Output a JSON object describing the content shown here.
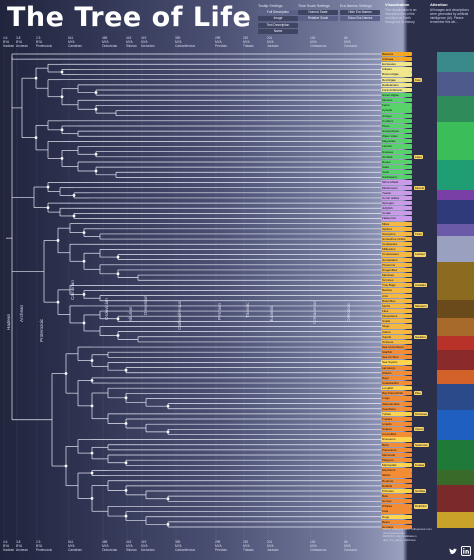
{
  "title": "The Tree of Life",
  "settings": {
    "tooltip": {
      "head": "Tooltip Settings",
      "buttons": [
        "Full Description",
        "Image",
        "Text Description",
        "Name"
      ]
    },
    "timescale": {
      "head": "Time Scale Settings",
      "buttons": [
        "Normal Scale",
        "Relative Scale"
      ]
    },
    "eranames": {
      "head": "Era Names Settings",
      "buttons": [
        "Hide Era Names",
        "Show Era Names"
      ]
    }
  },
  "visualization": {
    "heading": "Visualization",
    "text": "The visualization is an interactive tree of the evolution on Earth throughout its history."
  },
  "attention": {
    "heading": "Attention",
    "text": "All images and descriptions were generated by artificial intelligence (AI). Please remember this wh..."
  },
  "time_ticks": [
    [
      "4.6",
      "BYA",
      "Hadean"
    ],
    [
      "3.8",
      "BYA",
      "Archean"
    ],
    [
      "2.5",
      "BYA",
      "Proterozoic"
    ],
    [
      "541",
      "MYA",
      "Cambrian"
    ],
    [
      "485",
      "MYA",
      "Ordovician"
    ],
    [
      "443",
      "MYA",
      "Silurian"
    ],
    [
      "419",
      "MYA",
      "Devonian"
    ],
    [
      "359",
      "MYA",
      "Carboniferous"
    ],
    [
      "299",
      "MYA",
      "Permian"
    ],
    [
      "252",
      "MYA",
      "Triassic"
    ],
    [
      "201",
      "MYA",
      "Jurassic"
    ],
    [
      "145",
      "MYA",
      "Cretaceous"
    ],
    [
      "66",
      "MYA",
      "Cenozoic"
    ]
  ],
  "eras": [
    "Hadean",
    "Archean",
    "Proterozoic",
    "Cambrian",
    "Ordovician",
    "Silurian",
    "Devonian",
    "Carboniferous",
    "Permian",
    "Triassic",
    "Jurassic",
    "Cretaceous",
    "Cenozoic"
  ],
  "species": [
    "Bacteria",
    "Archaea",
    "Excavates",
    "Ciliates",
    "Brown Algae",
    "Red Algae",
    "Radiolarians",
    "Foraminiferans",
    "Green Algae",
    "Mosses",
    "Ferns",
    "Cycads",
    "Ginkgo",
    "Conifers",
    "Pines",
    "Gnetophytes",
    "Water Lilies",
    "Magnolias",
    "Laurels",
    "Grasses",
    "Orchids",
    "Roses",
    "Oaks",
    "Cacti",
    "Sunflowers",
    "Slime Molds",
    "Mushrooms",
    "Yeasts",
    "Comb Jellies",
    "Sponges",
    "Jellyfish",
    "Corals",
    "Flatworms",
    "Mites",
    "Spiders",
    "Scorpions",
    "Horseshoe Crabs",
    "Centipedes",
    "Millipedes",
    "Crustaceans",
    "Nematodes",
    "Pinworms",
    "Dragonflies",
    "Mantises",
    "Termites",
    "True Bugs",
    "Beetles",
    "Ants",
    "Butterflies",
    "Moths",
    "Flies",
    "Mosquitoes",
    "Snails",
    "Slugs",
    "Clams",
    "Squids",
    "Octopus",
    "Sea Cucumbers",
    "Starfish",
    "Sea Urchins",
    "Sea Squirts",
    "Lampreys",
    "Sharks",
    "Rays",
    "Coelacanths",
    "Lungfish",
    "Ray-finned Fish",
    "Frogs",
    "Salamanders",
    "Caecilians",
    "Turtles",
    "Tuatara",
    "Lizards",
    "Snakes",
    "Crocodiles",
    "Dinosaurs",
    "Birds",
    "Pterosaurs",
    "Mammals",
    "Platypus",
    "Marsupials",
    "Elephants",
    "Sloths",
    "Rodents",
    "Rabbits",
    "Primates",
    "Bats",
    "Horses",
    "Whales",
    "Cats",
    "Dogs",
    "Bears",
    "Humans"
  ],
  "tags": [
    {
      "row": 5,
      "text": "Kelp"
    },
    {
      "row": 20,
      "text": "Lilies"
    },
    {
      "row": 26,
      "text": "Morels"
    },
    {
      "row": 35,
      "text": "Ticks"
    },
    {
      "row": 39,
      "text": "Lobster"
    },
    {
      "row": 45,
      "text": "Cicadas"
    },
    {
      "row": 49,
      "text": "Skippers"
    },
    {
      "row": 55,
      "text": "Nautilus"
    },
    {
      "row": 66,
      "text": "Pike"
    },
    {
      "row": 70,
      "text": "Tortoises"
    },
    {
      "row": 73,
      "text": "Vipers"
    },
    {
      "row": 76,
      "text": "Sparrows"
    },
    {
      "row": 80,
      "text": "Koalas"
    },
    {
      "row": 85,
      "text": "Gorillas"
    },
    {
      "row": 88,
      "text": "Dolphins"
    }
  ],
  "footer": {
    "data": "DATA: tolfsychi.com, tolfspecies.com",
    "src": "chat.openai.com",
    "design": "DESIGN: Alex Veikkanen",
    "handle": "dgtl_fire_lama_Vaibhave"
  },
  "icons": {
    "twitter": "twitter-icon",
    "linkedin": "linkedin-icon"
  },
  "colors": {
    "background": "#2b2f4a",
    "accent": "#9aa0bf"
  }
}
